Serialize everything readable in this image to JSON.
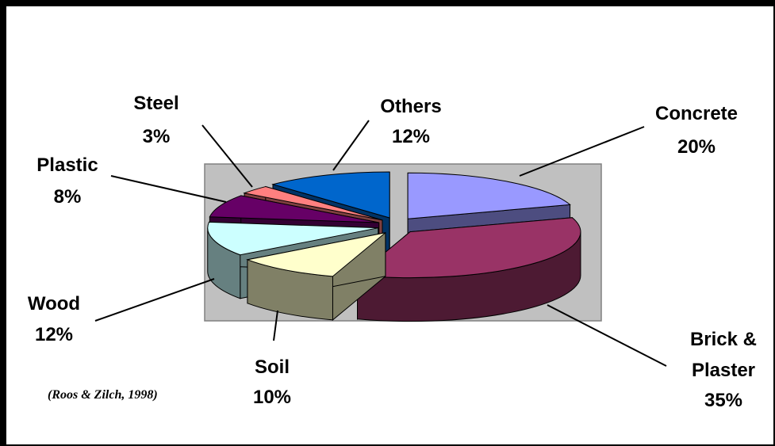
{
  "chart_data": {
    "type": "pie3d",
    "categories": [
      "Concrete",
      "Brick & Plaster",
      "Soil",
      "Wood",
      "Plastic",
      "Steel",
      "Others"
    ],
    "values": [
      20,
      35,
      10,
      12,
      8,
      3,
      12
    ],
    "value_labels": [
      "20%",
      "35%",
      "10%",
      "12%",
      "8%",
      "3%",
      "12%"
    ],
    "colors": [
      "#9999ff",
      "#993366",
      "#ffffcc",
      "#ccffff",
      "#660066",
      "#ff8080",
      "#0066cc"
    ],
    "source": "(Roos & Zilch, 1998)"
  }
}
